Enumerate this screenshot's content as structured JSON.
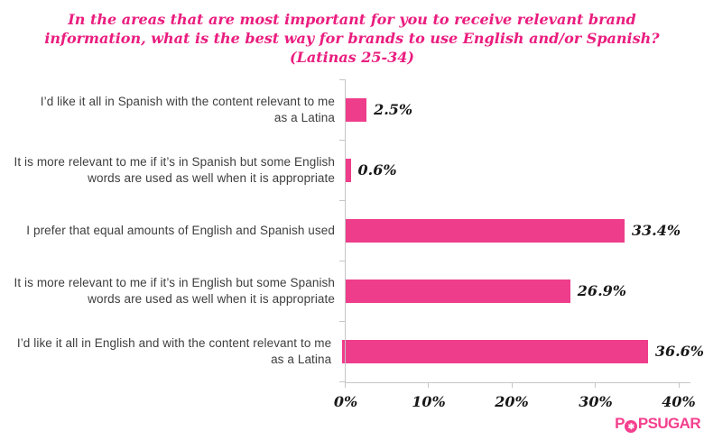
{
  "chart_data": {
    "type": "bar",
    "orientation": "horizontal",
    "title": "In the areas that are most important for you to receive relevant brand information, what is the best way for brands to use English and/or Spanish? (Latinas 25-34)",
    "title_lines": [
      "In the areas that are most important for you to receive relevant brand",
      "information, what is the best way for brands to use English and/or Spanish?",
      "(Latinas 25-34)"
    ],
    "categories": [
      "I’d like it all in Spanish with the content relevant to me as a Latina",
      "It is more relevant to me if it’s in Spanish but some English words are used as well when it is appropriate",
      "I prefer that equal amounts of English and Spanish used",
      "It is more relevant to me if it’s in English but some Spanish words are used as well when it is appropriate",
      "I’d like it all in English and with the content relevant to me as a Latina"
    ],
    "categories_lines": [
      [
        "I’d like it all in Spanish with the content relevant to me",
        "as a Latina"
      ],
      [
        "It is more relevant to me if it’s in Spanish but some English",
        "words are used as well when it is appropriate"
      ],
      [
        "I prefer that equal amounts of English and Spanish used",
        ""
      ],
      [
        "It is more relevant to me if it’s in English but some Spanish",
        "words are used as well when it is appropriate"
      ],
      [
        "I’d like it all in English and with the content relevant to me",
        "as a Latina"
      ]
    ],
    "values": [
      2.5,
      0.6,
      33.4,
      26.9,
      36.6
    ],
    "value_labels": [
      "2.5%",
      "0.6%",
      "33.4%",
      "26.9%",
      "36.6%"
    ],
    "x_ticks": [
      "0%",
      "10%",
      "20%",
      "30%",
      "40%"
    ],
    "xlim": [
      0,
      40
    ],
    "xlabel": "",
    "ylabel": "",
    "grid": false,
    "legend": "none",
    "colors": {
      "bar": "#EE3D8B",
      "title": "#EA1D7F",
      "axis": "#C6C6C6",
      "category_label": "#3E3E3E",
      "value_label": "#191919"
    }
  },
  "branding": {
    "logo_part1": "P",
    "logo_part2": "PSUGAR",
    "logo_star_glyph": "✱",
    "logo_color": "#F4408E"
  }
}
